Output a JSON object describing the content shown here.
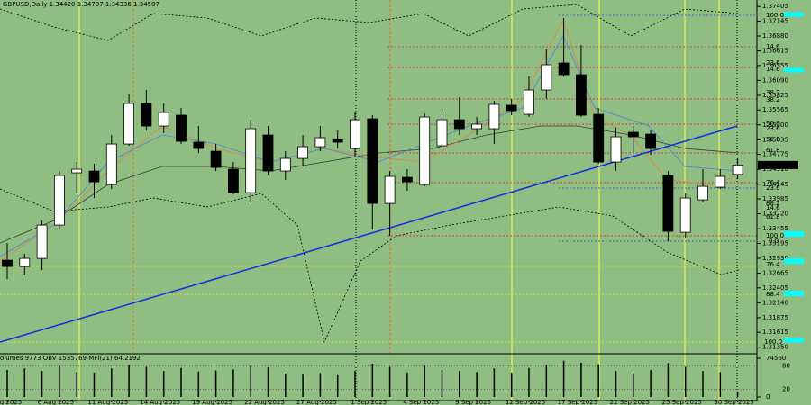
{
  "chart_data": {
    "type": "candlestick",
    "title": "GBPUSD,Daily 1.34420 1.34707 1.34336 1.34587",
    "indicator_label": "olumes 9773  OBV 1535769  MFI(21) 64.2192",
    "categories": [
      "1 Aug 2025",
      null,
      null,
      "6 Aug 2025",
      null,
      null,
      "11 Aug 2025",
      null,
      null,
      "14 Aug 2025",
      null,
      null,
      "19 Aug 2025",
      null,
      null,
      "22 Aug 2025",
      null,
      null,
      "27 Aug 2025",
      null,
      null,
      "1 Sep 2025",
      null,
      null,
      "4 Sep 2025",
      null,
      null,
      "9 Sep 2025",
      null,
      null,
      "12 Sep 2025",
      null,
      null,
      "17 Sep 2025",
      null,
      null,
      "22 Sep 2025",
      null,
      null,
      "25 Sep 2025",
      null,
      null,
      "30 Sep 2025"
    ],
    "open": [
      1.32896,
      1.32784,
      1.32928,
      1.3352,
      1.34448,
      1.3448,
      1.3424,
      1.3496,
      1.3568,
      1.3528,
      1.35472,
      1.34992,
      1.34832,
      1.34512,
      1.34096,
      1.3512,
      1.3448,
      1.34704,
      1.34912,
      1.3504,
      1.3488,
      1.35408,
      1.33904,
      1.34368,
      1.3424,
      1.34928,
      1.35392,
      1.35232,
      1.35232,
      1.35648,
      1.35488,
      1.3592,
      1.364,
      1.36192,
      1.35488,
      1.3464,
      1.35168,
      1.35136,
      1.344,
      1.33392,
      1.33968,
      1.34192,
      1.3442
    ],
    "high": [
      1.332,
      1.33008,
      1.336,
      1.3448,
      1.3464,
      1.34608,
      1.3512,
      1.3584,
      1.3592,
      1.3568,
      1.356,
      1.3528,
      1.3496,
      1.3464,
      1.35392,
      1.3528,
      1.34832,
      1.3512,
      1.3528,
      1.352,
      1.3552,
      1.35472,
      1.3448,
      1.34512,
      1.35504,
      1.35536,
      1.35792,
      1.3544,
      1.35728,
      1.3576,
      1.3616,
      1.3664,
      1.372,
      1.3672,
      1.356,
      1.35248,
      1.3528,
      1.35216,
      1.3448,
      1.3408,
      1.34512,
      1.34512,
      1.34707
    ],
    "low": [
      1.3256,
      1.3264,
      1.3272,
      1.3344,
      1.3408,
      1.34,
      1.3416,
      1.34928,
      1.352,
      1.35152,
      1.3496,
      1.348,
      1.3448,
      1.34064,
      1.3392,
      1.344,
      1.3432,
      1.3456,
      1.34832,
      1.3488,
      1.3472,
      1.3344,
      1.33328,
      1.34128,
      1.34208,
      1.34832,
      1.3512,
      1.3512,
      1.3496,
      1.35472,
      1.3544,
      1.3576,
      1.3616,
      1.3544,
      1.34608,
      1.3448,
      1.348,
      1.34768,
      1.33232,
      1.3328,
      1.3392,
      1.3416,
      1.34336
    ],
    "close": [
      1.32784,
      1.32928,
      1.3352,
      1.344,
      1.34512,
      1.34288,
      1.3496,
      1.3568,
      1.3528,
      1.3552,
      1.35008,
      1.3488,
      1.34544,
      1.34096,
      1.35232,
      1.3448,
      1.34704,
      1.34912,
      1.35072,
      1.34992,
      1.35392,
      1.33904,
      1.34384,
      1.34288,
      1.3544,
      1.35392,
      1.35232,
      1.35312,
      1.35664,
      1.35552,
      1.3592,
      1.36368,
      1.36192,
      1.35472,
      1.3464,
      1.35088,
      1.35088,
      1.3488,
      1.33408,
      1.34,
      1.34208,
      1.34384,
      1.34587
    ],
    "volumes": [
      52000,
      55000,
      50000,
      60000,
      48000,
      47000,
      55000,
      62000,
      58000,
      50000,
      56000,
      49000,
      51000,
      53000,
      60000,
      57000,
      45000,
      43000,
      46000,
      42000,
      50000,
      64000,
      58000,
      47000,
      60000,
      52000,
      50000,
      48000,
      55000,
      47000,
      56000,
      62000,
      70000,
      66000,
      63000,
      50000,
      46000,
      52000,
      65000,
      58000,
      50000,
      48000,
      9773
    ],
    "up_color": "#ffffff",
    "down_color": "#000000",
    "ylim": [
      1.3125,
      1.3752
    ],
    "yticks": [
      1.37405,
      1.37145,
      {
        "value": 1.3688,
        "label": "1.36880"
      },
      1.36615,
      1.36355,
      {
        "value": 1.3609,
        "label": "1.36090"
      },
      1.35825,
      1.35565,
      {
        "value": 1.353,
        "label": "1.35300"
      },
      1.35035,
      1.34775,
      {
        "value": 1.3451,
        "label": "1.34510"
      },
      1.34245,
      1.33985,
      {
        "value": 1.3372,
        "label": "1.33720"
      },
      1.33455,
      1.33195,
      {
        "value": 1.3293,
        "label": "1.32930"
      },
      1.32665,
      1.32405,
      {
        "value": 1.3214,
        "label": "1.32140"
      },
      1.31875,
      1.31615,
      {
        "value": 1.3135,
        "label": "1.31350"
      }
    ],
    "y2lim": [
      0,
      74560
    ],
    "y2ticks": [
      0,
      74560
    ],
    "mfi_lim": [
      0,
      100
    ],
    "mfi_levels": [
      20,
      80
    ],
    "fib_labels": [
      "100.0",
      "14.6",
      "23.6",
      "14.6",
      "38.2",
      "38.2",
      "50.0",
      "50.0",
      "61.8",
      "23.6",
      "76.4",
      "23.6",
      "88.2",
      "14.6",
      "61.8",
      "100.0",
      "0.0",
      "76.4",
      "88.4",
      "100.0"
    ]
  }
}
